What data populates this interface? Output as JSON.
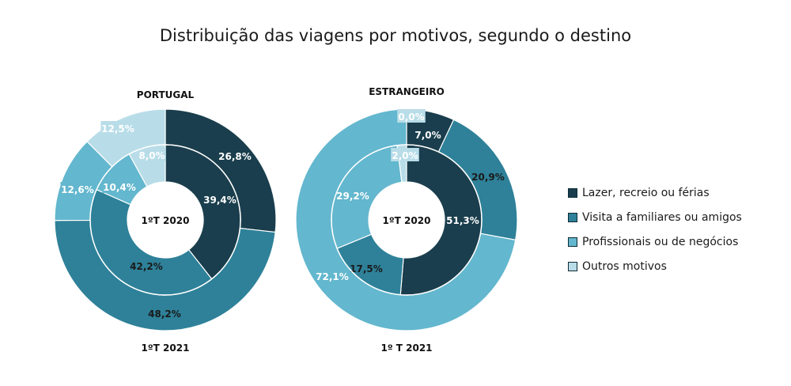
{
  "title": "Distribuição das viagens por motivos, segundo o destino",
  "chart_data": [
    {
      "type": "donut",
      "header": "PORTUGAL",
      "center_label": "1ºT 2020",
      "outer_label": "1ºT 2021",
      "categories": [
        "Lazer, recreio ou férias",
        "Visita a familiares ou amigos",
        "Profissionais ou de negócios",
        "Outros motivos"
      ],
      "inner": {
        "values": [
          39.4,
          42.2,
          10.4,
          8.0
        ],
        "labels": [
          "39,4%",
          "42,2%",
          "10,4%",
          "8,0%"
        ]
      },
      "outer": {
        "values": [
          26.8,
          48.2,
          12.6,
          12.5
        ],
        "labels": [
          "26,8%",
          "48,2%",
          "12,6%",
          "12,5%"
        ]
      }
    },
    {
      "type": "donut",
      "header": "ESTRANGEIRO",
      "center_label": "1ºT 2020",
      "outer_label": "1º T 2021",
      "categories": [
        "Lazer, recreio ou férias",
        "Visita a familiares ou amigos",
        "Profissionais ou de negócios",
        "Outros motivos"
      ],
      "inner": {
        "values": [
          51.3,
          17.5,
          29.2,
          2.0
        ],
        "labels": [
          "51,3%",
          "17,5%",
          "29,2%",
          "2,0%"
        ]
      },
      "outer": {
        "values": [
          7.0,
          20.9,
          72.1,
          0.0
        ],
        "labels": [
          "7,0%",
          "20,9%",
          "72,1%",
          "0,0%"
        ]
      }
    }
  ],
  "legend": [
    {
      "label": "Lazer, recreio ou férias",
      "color": "#1a3e4d"
    },
    {
      "label": "Visita a familiares ou amigos",
      "color": "#2e8199"
    },
    {
      "label": "Profissionais ou de negócios",
      "color": "#63b7ce"
    },
    {
      "label": "Outros motivos",
      "color": "#b8dde8"
    }
  ]
}
